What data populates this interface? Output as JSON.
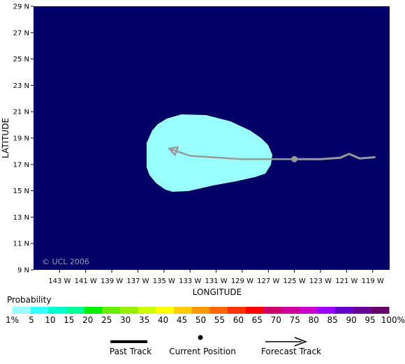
{
  "map": {
    "background_color": "#000066",
    "land_color": "#ffffff",
    "credit": "© UCL 2006",
    "xlabel": "LONGITUDE",
    "ylabel": "LATITUDE",
    "lat_ticks": [
      "29 N",
      "27 N",
      "25 N",
      "23 N",
      "21 N",
      "19 N",
      "17 N",
      "15 N",
      "13 N",
      "11 N",
      "9 N"
    ],
    "lon_ticks": [
      "143 W",
      "141 W",
      "139 W",
      "137 W",
      "135 W",
      "133 W",
      "131 W",
      "129 W",
      "127 W",
      "125 W",
      "123 W",
      "121 W",
      "119 W"
    ],
    "probability_region_color": "#99ffff",
    "track_color": "#999999",
    "current_position": {
      "lon": -125.0,
      "lat": 17.4
    },
    "past_track": [
      {
        "lon": -125.0,
        "lat": 17.4
      },
      {
        "lon": -123.0,
        "lat": 17.4
      },
      {
        "lon": -121.5,
        "lat": 17.5
      },
      {
        "lon": -120.8,
        "lat": 17.8
      },
      {
        "lon": -120.0,
        "lat": 17.45
      },
      {
        "lon": -118.8,
        "lat": 17.55
      }
    ],
    "forecast_track": [
      {
        "lon": -125.0,
        "lat": 17.4
      },
      {
        "lon": -129.0,
        "lat": 17.4
      },
      {
        "lon": -133.0,
        "lat": 17.65
      },
      {
        "lon": -134.6,
        "lat": 18.2
      }
    ]
  },
  "legend": {
    "probability_title": "Probability",
    "scale_labels": [
      "1%",
      "5",
      "10",
      "15",
      "20",
      "25",
      "30",
      "35",
      "40",
      "45",
      "50",
      "55",
      "60",
      "65",
      "70",
      "75",
      "80",
      "85",
      "90",
      "95",
      "100%"
    ],
    "scale_colors": [
      "#99ffff",
      "#33ffff",
      "#00ffcc",
      "#00ff99",
      "#00ee00",
      "#66ee00",
      "#99ee00",
      "#ccff00",
      "#ffff00",
      "#ffcc00",
      "#ff9900",
      "#ff6600",
      "#ff3300",
      "#ff0000",
      "#cc0066",
      "#cc0099",
      "#cc00cc",
      "#9900ff",
      "#6600cc",
      "#660099",
      "#660066"
    ],
    "past_track_label": "Past Track",
    "current_position_label": "Current Position",
    "forecast_track_label": "Forecast Track"
  }
}
